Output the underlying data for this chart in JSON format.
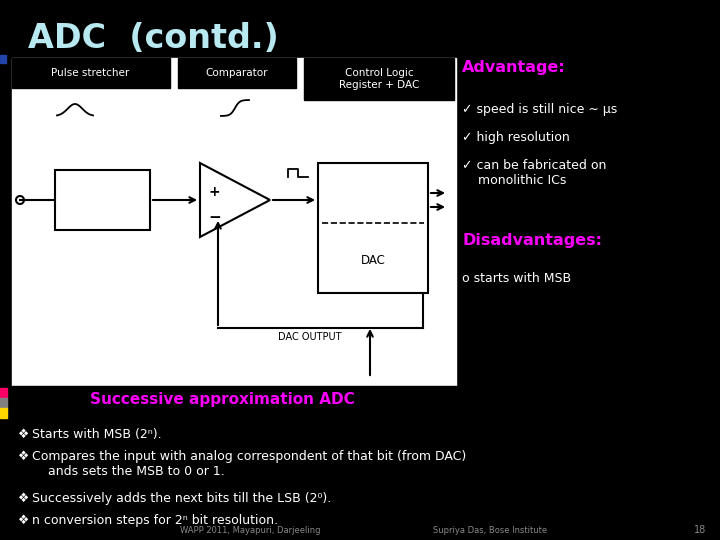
{
  "title": "ADC  (contd.)",
  "title_color": "#B8E8F0",
  "background_color": "#000000",
  "advantage_title": "Advantage:",
  "advantage_color": "#FF00FF",
  "advantages": [
    "speed is still nice ∼ μs",
    "high resolution",
    "can be fabricated on\n    monolithic ICs"
  ],
  "disadvantages_title": "Disadvantages:",
  "disadvantages_color": "#FF00FF",
  "disadvantages": [
    "starts with MSB"
  ],
  "successive_title": "Successive approximation ADC",
  "successive_color": "#FF00FF",
  "bullets": [
    "Starts with MSB (2ⁿ).",
    "Compares the input with analog correspondent of that bit (from DAC)\n    ands sets the MSB to 0 or 1.",
    "Successively adds the next bits till the LSB (2⁰).",
    "n conversion steps for 2ⁿ bit resolution."
  ],
  "bullet_color": "#FFFFFF",
  "footer_left": "WAPP 2011, Mayapuri, Darjeeling",
  "footer_right": "Supriya Das, Bose Institute",
  "footer_num": "18",
  "labels_top": [
    "Pulse stretcher",
    "Comparator",
    "Control Logic\nRegister + DAC"
  ],
  "diagram_bg": "#FFFFFF",
  "left_bar_colors": [
    "#FF0066",
    "#808080",
    "#FFD700"
  ]
}
